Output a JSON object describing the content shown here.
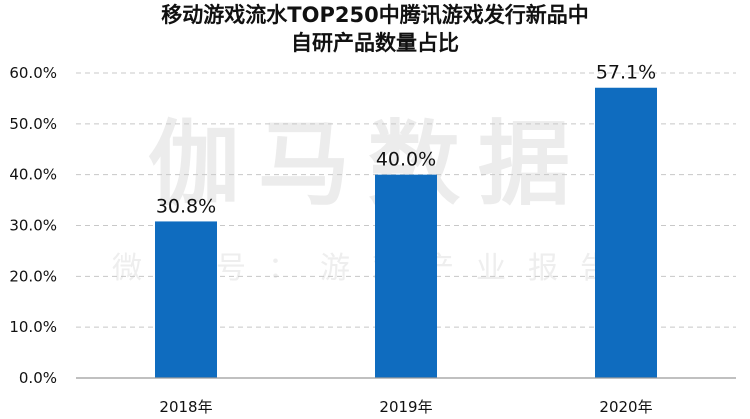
{
  "chart_data": {
    "type": "bar",
    "title": [
      "移动游戏流水TOP250中腾讯游戏发行新品中",
      "自研产品数量占比"
    ],
    "categories": [
      "2018年",
      "2019年",
      "2020年"
    ],
    "values": [
      30.8,
      40.0,
      57.1
    ],
    "data_labels": [
      "30.8%",
      "40.0%",
      "57.1%"
    ],
    "ylim": [
      0,
      60
    ],
    "yticks": [
      0,
      10,
      20,
      30,
      40,
      50,
      60
    ],
    "ytick_labels": [
      "0.0%",
      "10.0%",
      "20.0%",
      "30.0%",
      "40.0%",
      "50.0%",
      "60.0%"
    ],
    "bar_color": "#0f6cbf",
    "grid": true,
    "grid_style": "dashed"
  },
  "watermark": {
    "main": "伽马数据",
    "sub": "微信号：游戏产业报告"
  }
}
